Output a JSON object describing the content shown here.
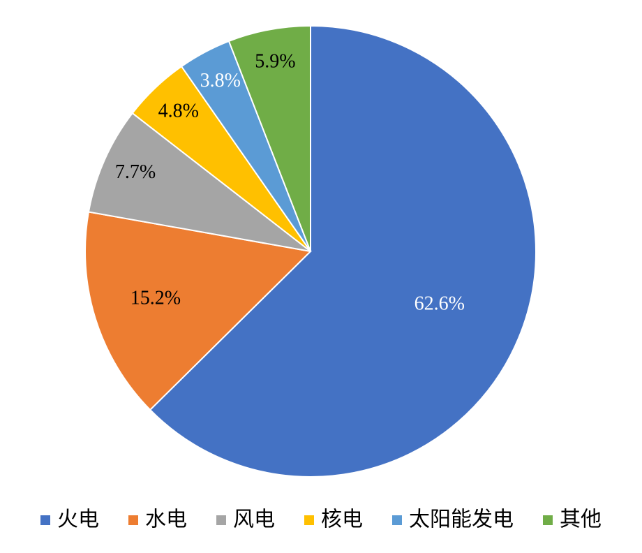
{
  "chart_data": {
    "type": "pie",
    "categories": [
      "火电",
      "水电",
      "风电",
      "核电",
      "太阳能发电",
      "其他"
    ],
    "values": [
      62.6,
      15.2,
      7.7,
      4.8,
      3.8,
      5.9
    ],
    "value_labels": [
      "62.6%",
      "15.2%",
      "7.7%",
      "4.8%",
      "3.8%",
      "5.9%"
    ],
    "colors": [
      "#4472c4",
      "#ed7d31",
      "#a5a5a5",
      "#ffc000",
      "#5b9bd5",
      "#70ad47"
    ],
    "label_colors": [
      "#ffffff",
      "#000000",
      "#000000",
      "#000000",
      "#ffffff",
      "#000000"
    ],
    "legend": "bottom"
  }
}
